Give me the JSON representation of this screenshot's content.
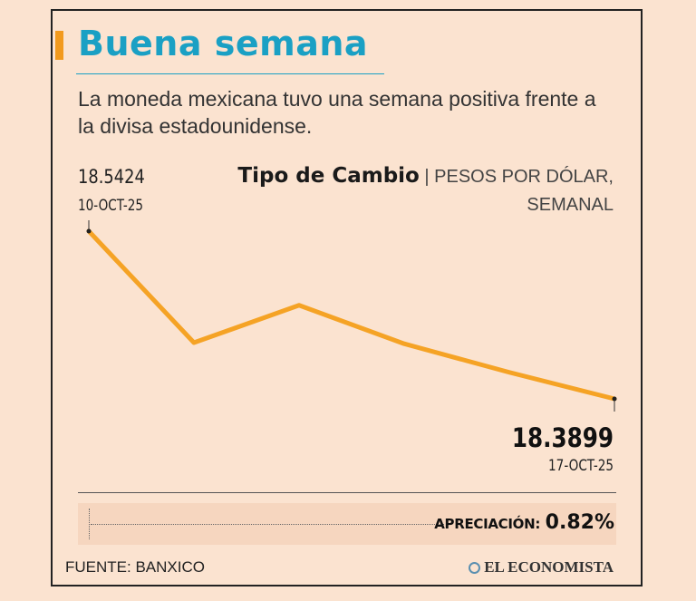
{
  "header": {
    "title": "Buena semana",
    "subtitle": "La moneda mexicana tuvo una semana positiva frente a la divisa estadounidense."
  },
  "chart_data": {
    "type": "line",
    "title": "Tipo de Cambio",
    "units": "PESOS POR DÓLAR, SEMANAL",
    "x": [
      "10-OCT-25",
      "",
      "",
      "",
      "",
      "17-OCT-25"
    ],
    "values": [
      18.5424,
      18.441,
      18.475,
      18.44,
      18.414,
      18.3899
    ],
    "ylim": [
      18.37,
      18.56
    ],
    "line_color": "#f5a325",
    "start_label": {
      "value": "18.5424",
      "date": "10-OCT-25"
    },
    "end_label": {
      "value": "18.3899",
      "date": "17-OCT-25"
    },
    "grid": false
  },
  "summary": {
    "label": "APRECIACIÓN:",
    "value": "0.82%"
  },
  "footer": {
    "source": "FUENTE: BANXICO",
    "brand": "EL ECONOMISTA"
  }
}
